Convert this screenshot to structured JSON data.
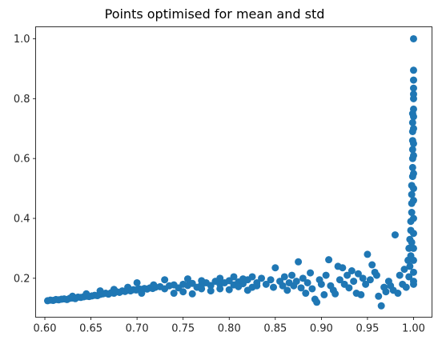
{
  "chart_data": {
    "type": "scatter",
    "title": "Points optimised for mean and std",
    "xlabel": "",
    "ylabel": "",
    "xlim": [
      0.59,
      1.02
    ],
    "ylim": [
      0.07,
      1.04
    ],
    "xticks": [
      0.6,
      0.65,
      0.7,
      0.75,
      0.8,
      0.85,
      0.9,
      0.95,
      1.0
    ],
    "xtick_labels": [
      "0.60",
      "0.65",
      "0.70",
      "0.75",
      "0.80",
      "0.85",
      "0.90",
      "0.95",
      "1.00"
    ],
    "yticks": [
      0.2,
      0.4,
      0.6,
      0.8,
      1.0
    ],
    "ytick_labels": [
      "0.2",
      "0.4",
      "0.6",
      "0.8",
      "1.0"
    ],
    "grid": false,
    "series": [
      {
        "color": "#1f77b4",
        "points": [
          [
            0.603,
            0.125
          ],
          [
            0.606,
            0.127
          ],
          [
            0.609,
            0.126
          ],
          [
            0.612,
            0.129
          ],
          [
            0.615,
            0.128
          ],
          [
            0.618,
            0.13
          ],
          [
            0.621,
            0.131
          ],
          [
            0.624,
            0.129
          ],
          [
            0.627,
            0.133
          ],
          [
            0.63,
            0.134
          ],
          [
            0.633,
            0.132
          ],
          [
            0.636,
            0.137
          ],
          [
            0.639,
            0.136
          ],
          [
            0.642,
            0.138
          ],
          [
            0.645,
            0.14
          ],
          [
            0.648,
            0.139
          ],
          [
            0.651,
            0.141
          ],
          [
            0.654,
            0.143
          ],
          [
            0.657,
            0.142
          ],
          [
            0.66,
            0.146
          ],
          [
            0.663,
            0.148
          ],
          [
            0.666,
            0.15
          ],
          [
            0.669,
            0.147
          ],
          [
            0.672,
            0.152
          ],
          [
            0.675,
            0.15
          ],
          [
            0.678,
            0.155
          ],
          [
            0.681,
            0.153
          ],
          [
            0.684,
            0.158
          ],
          [
            0.687,
            0.156
          ],
          [
            0.69,
            0.16
          ],
          [
            0.693,
            0.158
          ],
          [
            0.696,
            0.162
          ],
          [
            0.699,
            0.161
          ],
          [
            0.702,
            0.165
          ],
          [
            0.705,
            0.163
          ],
          [
            0.708,
            0.166
          ],
          [
            0.711,
            0.164
          ],
          [
            0.714,
            0.168
          ],
          [
            0.717,
            0.166
          ],
          [
            0.72,
            0.17
          ],
          [
            0.63,
            0.14
          ],
          [
            0.645,
            0.148
          ],
          [
            0.66,
            0.158
          ],
          [
            0.675,
            0.163
          ],
          [
            0.69,
            0.17
          ],
          [
            0.7,
            0.185
          ],
          [
            0.705,
            0.15
          ],
          [
            0.718,
            0.178
          ],
          [
            0.725,
            0.172
          ],
          [
            0.73,
            0.165
          ],
          [
            0.735,
            0.175
          ],
          [
            0.74,
            0.178
          ],
          [
            0.745,
            0.168
          ],
          [
            0.75,
            0.18
          ],
          [
            0.755,
            0.176
          ],
          [
            0.76,
            0.183
          ],
          [
            0.765,
            0.17
          ],
          [
            0.77,
            0.178
          ],
          [
            0.775,
            0.185
          ],
          [
            0.78,
            0.176
          ],
          [
            0.785,
            0.19
          ],
          [
            0.79,
            0.18
          ],
          [
            0.795,
            0.185
          ],
          [
            0.8,
            0.192
          ],
          [
            0.805,
            0.178
          ],
          [
            0.81,
            0.188
          ],
          [
            0.815,
            0.182
          ],
          [
            0.82,
            0.195
          ],
          [
            0.825,
            0.17
          ],
          [
            0.83,
            0.185
          ],
          [
            0.74,
            0.15
          ],
          [
            0.75,
            0.155
          ],
          [
            0.76,
            0.148
          ],
          [
            0.77,
            0.165
          ],
          [
            0.78,
            0.158
          ],
          [
            0.79,
            0.165
          ],
          [
            0.8,
            0.162
          ],
          [
            0.81,
            0.172
          ],
          [
            0.82,
            0.16
          ],
          [
            0.83,
            0.175
          ],
          [
            0.73,
            0.195
          ],
          [
            0.755,
            0.198
          ],
          [
            0.77,
            0.192
          ],
          [
            0.79,
            0.2
          ],
          [
            0.805,
            0.205
          ],
          [
            0.815,
            0.198
          ],
          [
            0.825,
            0.205
          ],
          [
            0.835,
            0.2
          ],
          [
            0.84,
            0.18
          ],
          [
            0.845,
            0.195
          ],
          [
            0.85,
            0.235
          ],
          [
            0.848,
            0.17
          ],
          [
            0.855,
            0.19
          ],
          [
            0.858,
            0.175
          ],
          [
            0.86,
            0.205
          ],
          [
            0.863,
            0.16
          ],
          [
            0.865,
            0.185
          ],
          [
            0.868,
            0.21
          ],
          [
            0.87,
            0.175
          ],
          [
            0.873,
            0.19
          ],
          [
            0.875,
            0.255
          ],
          [
            0.878,
            0.168
          ],
          [
            0.88,
            0.2
          ],
          [
            0.883,
            0.15
          ],
          [
            0.885,
            0.185
          ],
          [
            0.888,
            0.218
          ],
          [
            0.89,
            0.165
          ],
          [
            0.893,
            0.13
          ],
          [
            0.895,
            0.12
          ],
          [
            0.898,
            0.195
          ],
          [
            0.9,
            0.18
          ],
          [
            0.903,
            0.145
          ],
          [
            0.905,
            0.21
          ],
          [
            0.908,
            0.262
          ],
          [
            0.91,
            0.175
          ],
          [
            0.913,
            0.16
          ],
          [
            0.915,
            0.148
          ],
          [
            0.918,
            0.24
          ],
          [
            0.92,
            0.195
          ],
          [
            0.923,
            0.235
          ],
          [
            0.925,
            0.18
          ],
          [
            0.928,
            0.21
          ],
          [
            0.93,
            0.168
          ],
          [
            0.933,
            0.225
          ],
          [
            0.935,
            0.19
          ],
          [
            0.938,
            0.15
          ],
          [
            0.94,
            0.215
          ],
          [
            0.943,
            0.145
          ],
          [
            0.945,
            0.2
          ],
          [
            0.948,
            0.18
          ],
          [
            0.95,
            0.28
          ],
          [
            0.953,
            0.195
          ],
          [
            0.955,
            0.245
          ],
          [
            0.958,
            0.22
          ],
          [
            0.96,
            0.21
          ],
          [
            0.962,
            0.14
          ],
          [
            0.965,
            0.108
          ],
          [
            0.968,
            0.17
          ],
          [
            0.97,
            0.155
          ],
          [
            0.973,
            0.19
          ],
          [
            0.975,
            0.175
          ],
          [
            0.978,
            0.16
          ],
          [
            0.98,
            0.345
          ],
          [
            0.983,
            0.15
          ],
          [
            0.985,
            0.21
          ],
          [
            0.988,
            0.18
          ],
          [
            0.99,
            0.23
          ],
          [
            0.992,
            0.17
          ],
          [
            0.994,
            0.26
          ],
          [
            0.995,
            0.3
          ],
          [
            0.996,
            0.33
          ],
          [
            0.997,
            0.36
          ],
          [
            0.997,
            0.39
          ],
          [
            0.998,
            0.42
          ],
          [
            0.998,
            0.45
          ],
          [
            0.998,
            0.48
          ],
          [
            0.998,
            0.51
          ],
          [
            0.999,
            0.54
          ],
          [
            0.999,
            0.57
          ],
          [
            0.999,
            0.6
          ],
          [
            0.999,
            0.63
          ],
          [
            0.999,
            0.66
          ],
          [
            0.999,
            0.69
          ],
          [
            0.999,
            0.72
          ],
          [
            0.999,
            0.75
          ],
          [
            1.0,
            0.5
          ],
          [
            1.0,
            0.46
          ],
          [
            1.0,
            0.4
          ],
          [
            1.0,
            0.35
          ],
          [
            1.0,
            0.3
          ],
          [
            1.0,
            0.26
          ],
          [
            1.0,
            0.22
          ],
          [
            1.0,
            0.19
          ],
          [
            1.0,
            0.18
          ],
          [
            1.0,
            0.55
          ],
          [
            1.0,
            0.61
          ],
          [
            1.0,
            0.65
          ],
          [
            1.0,
            0.7
          ],
          [
            1.0,
            0.74
          ],
          [
            1.0,
            0.765
          ],
          [
            1.0,
            0.8
          ],
          [
            1.0,
            0.815
          ],
          [
            1.0,
            0.835
          ],
          [
            1.0,
            0.862
          ],
          [
            1.0,
            0.895
          ],
          [
            1.0,
            1.0
          ],
          [
            0.997,
            0.275
          ],
          [
            0.996,
            0.24
          ],
          [
            0.995,
            0.205
          ],
          [
            0.998,
            0.32
          ]
        ]
      }
    ]
  }
}
